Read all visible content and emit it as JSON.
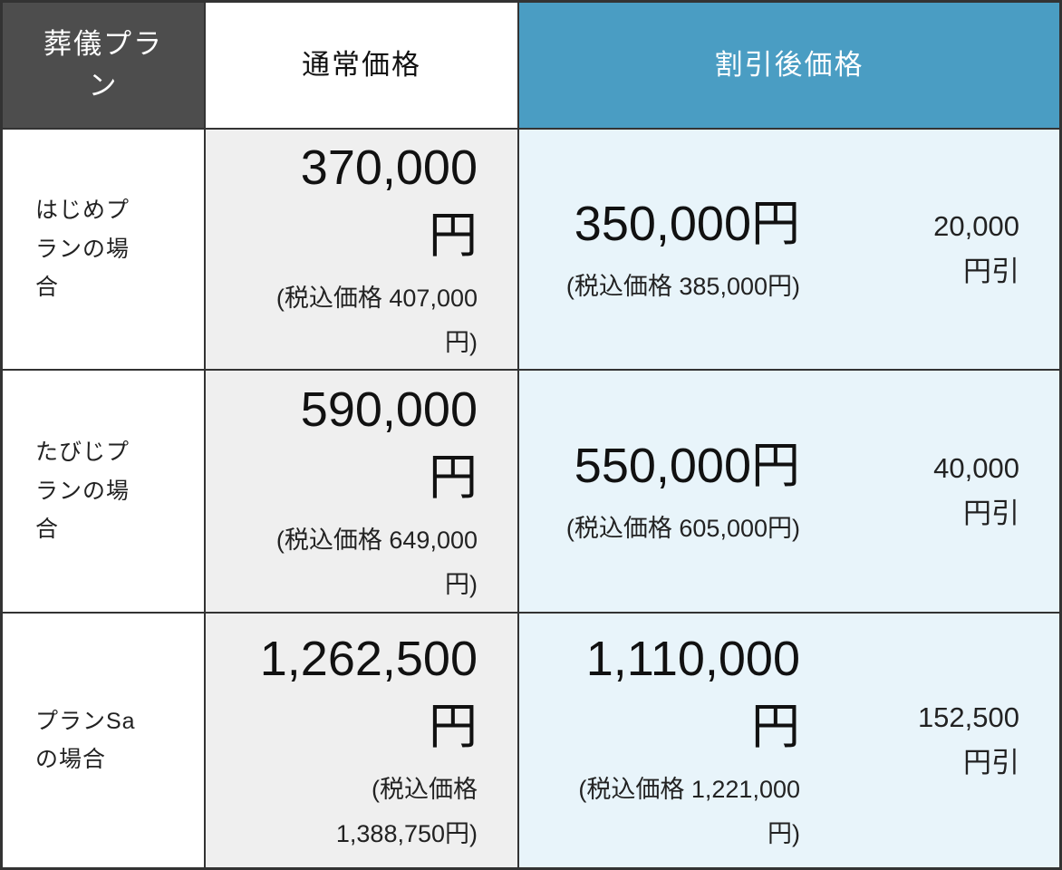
{
  "table": {
    "header": {
      "plan_label": "葬儀プラ\nン",
      "regular_label": "通常価格",
      "discounted_label": "割引後価格"
    },
    "rows": [
      {
        "plan": "はじめプ\nランの場\n合",
        "regular_price": "370,000\n円",
        "regular_tax_note": "(税込価格 407,000\n円)",
        "discounted_price": "350,000円",
        "discounted_tax_note": "(税込価格 385,000円)",
        "discount_amount": "20,000\n円引"
      },
      {
        "plan": "たびじプ\nランの場\n合",
        "regular_price": "590,000\n円",
        "regular_tax_note": "(税込価格 649,000\n円)",
        "discounted_price": "550,000円",
        "discounted_tax_note": "(税込価格 605,000円)",
        "discount_amount": "40,000\n円引"
      },
      {
        "plan": "プランSa\nの場合",
        "regular_price": "1,262,500\n円",
        "regular_tax_note": "(税込価格\n1,388,750円)",
        "discounted_price": "1,110,000\n円",
        "discounted_tax_note": "(税込価格 1,221,000\n円)",
        "discount_amount": "152,500\n円引"
      }
    ],
    "colors": {
      "header_dark_bg": "#4d4d4d",
      "header_accent_bg": "#4a9dc3",
      "regular_column_bg": "#efefef",
      "discount_section_bg": "#e8f4fa",
      "border": "#333333"
    }
  }
}
